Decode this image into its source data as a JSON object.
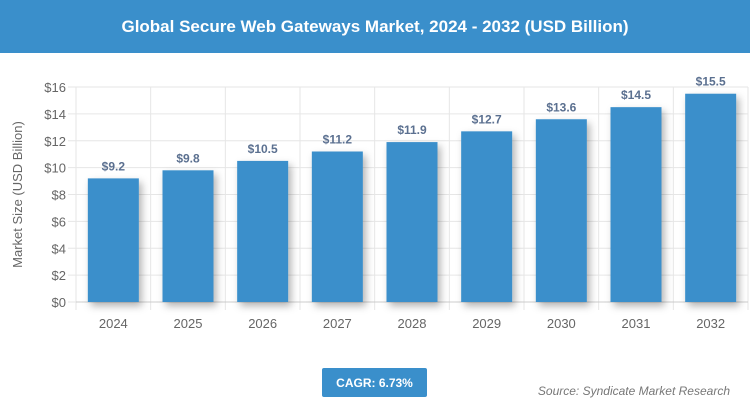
{
  "chart_data": {
    "type": "bar",
    "title": "Global Secure Web Gateways Market, 2024 - 2032 (USD Billion)",
    "ylabel": "Market Size (USD Billion)",
    "xlabel": "",
    "categories": [
      "2024",
      "2025",
      "2026",
      "2027",
      "2028",
      "2029",
      "2030",
      "2031",
      "2032"
    ],
    "values": [
      9.2,
      9.8,
      10.5,
      11.2,
      11.9,
      12.7,
      13.6,
      14.5,
      15.5
    ],
    "data_labels": [
      "$9.2",
      "$9.8",
      "$10.5",
      "$11.2",
      "$11.9",
      "$12.7",
      "$13.6",
      "$14.5",
      "$15.5"
    ],
    "ylim": [
      0,
      16
    ],
    "yticks": [
      0,
      2,
      4,
      6,
      8,
      10,
      12,
      14,
      16
    ],
    "ytick_labels": [
      "$0",
      "$2",
      "$4",
      "$6",
      "$8",
      "$10",
      "$12",
      "$14",
      "$16"
    ],
    "grid": true,
    "bar_color": "#3a8fcb"
  },
  "cagr": "CAGR: 6.73%",
  "source": "Source: Syndicate Market Research"
}
